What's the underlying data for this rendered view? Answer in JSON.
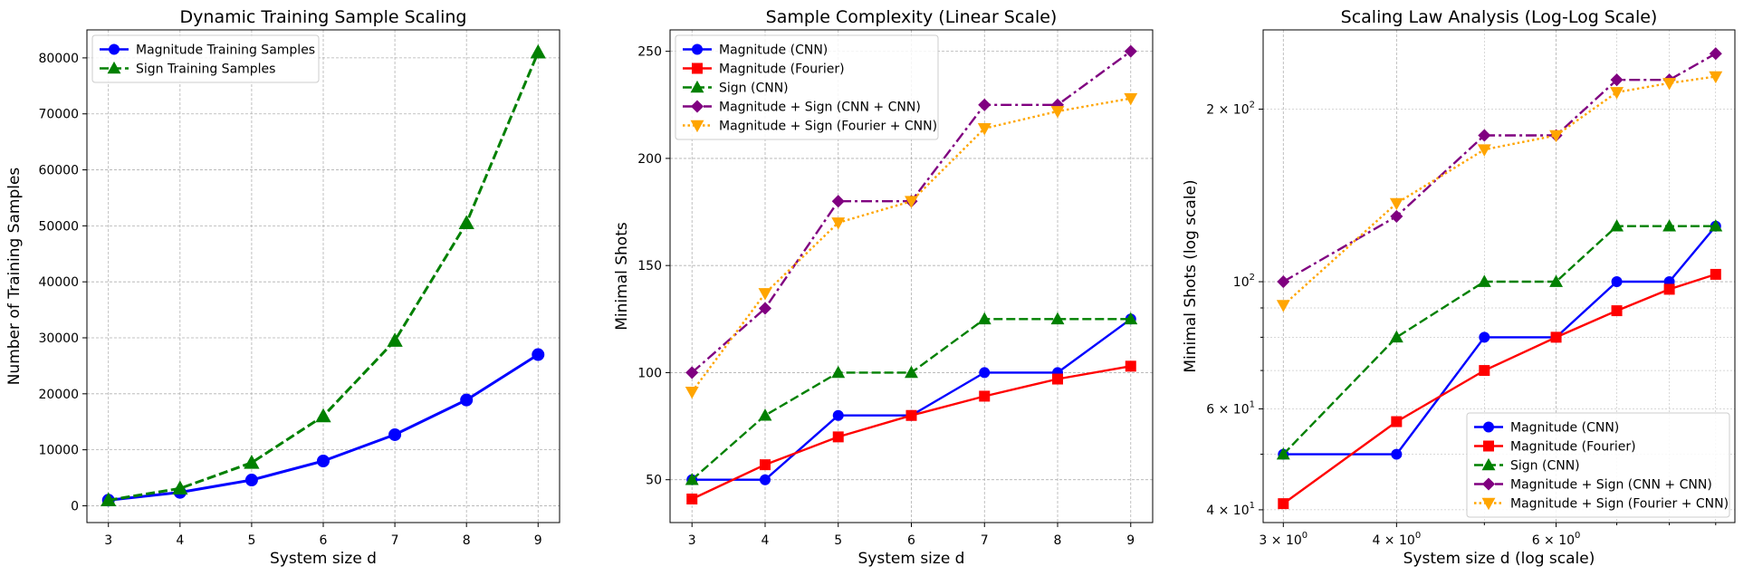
{
  "chart_data": [
    {
      "type": "line",
      "title": "Dynamic Training Sample Scaling",
      "xlabel": "System size d",
      "ylabel": "Number of Training Samples",
      "xscale": "linear",
      "yscale": "linear",
      "xlim": [
        2.7,
        9.3
      ],
      "ylim": [
        -3000,
        85000
      ],
      "xticks": [
        3,
        4,
        5,
        6,
        7,
        8,
        9
      ],
      "xtick_labels": [
        "3",
        "4",
        "5",
        "6",
        "7",
        "8",
        "9"
      ],
      "yticks": [
        0,
        10000,
        20000,
        30000,
        40000,
        50000,
        60000,
        70000,
        80000
      ],
      "ytick_labels": [
        "0",
        "10000",
        "20000",
        "30000",
        "40000",
        "50000",
        "60000",
        "70000",
        "80000"
      ],
      "grid": true,
      "legend_position": "upper-left",
      "x": [
        3,
        4,
        5,
        6,
        7,
        8,
        9
      ],
      "series": [
        {
          "name": "Magnitude Training Samples",
          "values": [
            1000,
            2400,
            4600,
            8000,
            12700,
            18900,
            27000
          ],
          "color": "#0000ff",
          "marker": "circle",
          "linestyle": "solid"
        },
        {
          "name": "Sign Training Samples",
          "values": [
            1000,
            3100,
            7700,
            16000,
            29500,
            50500,
            81000
          ],
          "color": "#008000",
          "marker": "triangle-up",
          "linestyle": "dashed"
        }
      ]
    },
    {
      "type": "line",
      "title": "Sample Complexity (Linear Scale)",
      "xlabel": "System size d",
      "ylabel": "Minimal Shots",
      "xscale": "linear",
      "yscale": "linear",
      "xlim": [
        2.7,
        9.3
      ],
      "ylim": [
        30,
        260
      ],
      "xticks": [
        3,
        4,
        5,
        6,
        7,
        8,
        9
      ],
      "xtick_labels": [
        "3",
        "4",
        "5",
        "6",
        "7",
        "8",
        "9"
      ],
      "yticks": [
        50,
        100,
        150,
        200,
        250
      ],
      "ytick_labels": [
        "50",
        "100",
        "150",
        "200",
        "250"
      ],
      "grid": true,
      "legend_position": "upper-left",
      "x": [
        3,
        4,
        5,
        6,
        7,
        8,
        9
      ],
      "series": [
        {
          "name": "Magnitude (CNN)",
          "values": [
            50,
            50,
            80,
            80,
            100,
            100,
            125
          ],
          "color": "#0000ff",
          "marker": "circle",
          "linestyle": "solid"
        },
        {
          "name": "Magnitude (Fourier)",
          "values": [
            41,
            57,
            70,
            80,
            89,
            97,
            103
          ],
          "color": "#ff0000",
          "marker": "square",
          "linestyle": "solid"
        },
        {
          "name": "Sign (CNN)",
          "values": [
            50,
            80,
            100,
            100,
            125,
            125,
            125
          ],
          "color": "#008000",
          "marker": "triangle-up",
          "linestyle": "dashed"
        },
        {
          "name": "Magnitude + Sign (CNN + CNN)",
          "values": [
            100,
            130,
            180,
            180,
            225,
            225,
            250
          ],
          "color": "#800080",
          "marker": "diamond",
          "linestyle": "dashdot"
        },
        {
          "name": "Magnitude + Sign (Fourier + CNN)",
          "values": [
            91,
            137,
            170,
            180,
            214,
            222,
            228
          ],
          "color": "#ffa500",
          "marker": "triangle-down",
          "linestyle": "dotted"
        }
      ]
    },
    {
      "type": "line",
      "title": "Scaling Law Analysis (Log-Log Scale)",
      "xlabel": "System size d (log scale)",
      "ylabel": "Minimal Shots (log scale)",
      "xscale": "log",
      "yscale": "log",
      "xlim": [
        2.85,
        9.45
      ],
      "ylim": [
        38,
        275
      ],
      "xticks": [
        3,
        4,
        6
      ],
      "xtick_labels": [
        {
          "base": "3 × 10",
          "exp": "0"
        },
        {
          "base": "4 × 10",
          "exp": "0"
        },
        {
          "base": "6 × 10",
          "exp": "0"
        }
      ],
      "yticks": [
        40,
        60,
        100,
        200
      ],
      "ytick_labels": [
        {
          "base": "4 × 10",
          "exp": "1"
        },
        {
          "base": "6 × 10",
          "exp": "1"
        },
        {
          "base": "10",
          "exp": "2"
        },
        {
          "base": "2 × 10",
          "exp": "2"
        }
      ],
      "grid": true,
      "legend_position": "lower-right",
      "x": [
        3,
        4,
        5,
        6,
        7,
        8,
        9
      ],
      "series": [
        {
          "name": "Magnitude (CNN)",
          "values": [
            50,
            50,
            80,
            80,
            100,
            100,
            125
          ],
          "color": "#0000ff",
          "marker": "circle",
          "linestyle": "solid"
        },
        {
          "name": "Magnitude (Fourier)",
          "values": [
            41,
            57,
            70,
            80,
            89,
            97,
            103
          ],
          "color": "#ff0000",
          "marker": "square",
          "linestyle": "solid"
        },
        {
          "name": "Sign (CNN)",
          "values": [
            50,
            80,
            100,
            100,
            125,
            125,
            125
          ],
          "color": "#008000",
          "marker": "triangle-up",
          "linestyle": "dashed"
        },
        {
          "name": "Magnitude + Sign (CNN + CNN)",
          "values": [
            100,
            130,
            180,
            180,
            225,
            225,
            250
          ],
          "color": "#800080",
          "marker": "diamond",
          "linestyle": "dashdot"
        },
        {
          "name": "Magnitude + Sign (Fourier + CNN)",
          "values": [
            91,
            137,
            170,
            180,
            214,
            222,
            228
          ],
          "color": "#ffa500",
          "marker": "triangle-down",
          "linestyle": "dotted"
        }
      ]
    }
  ]
}
